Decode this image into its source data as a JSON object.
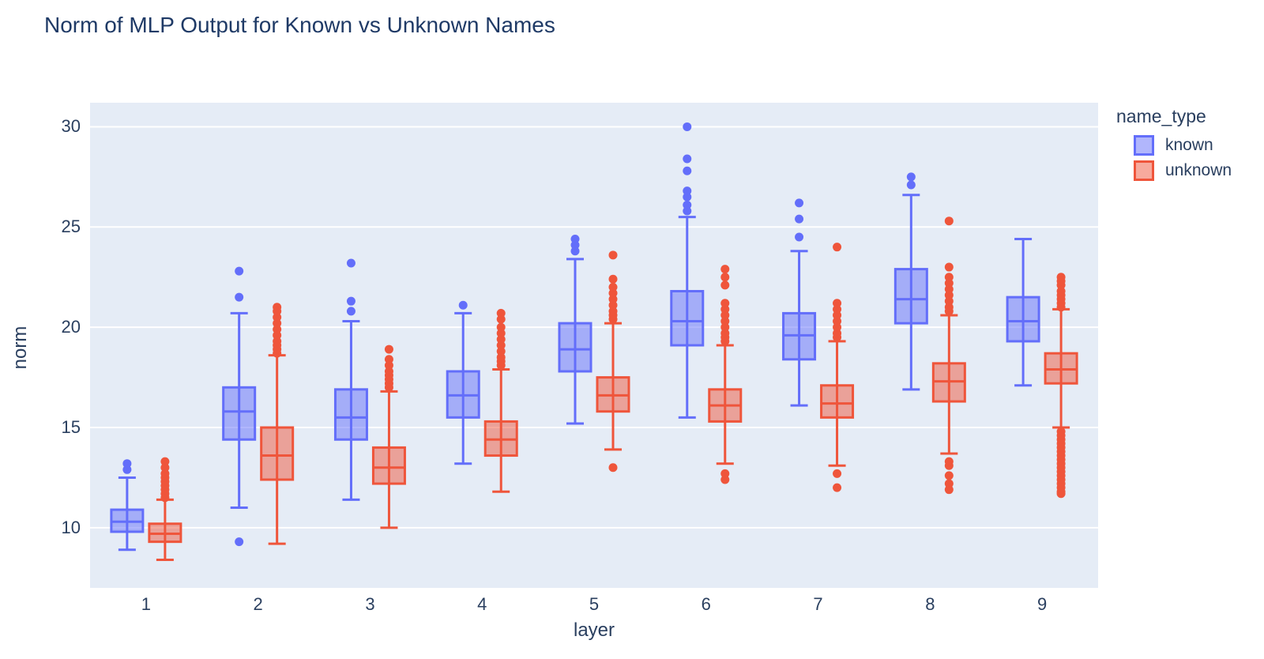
{
  "title": "Norm of MLP Output for Known vs Unknown Names",
  "legend": {
    "title": "name_type",
    "items": [
      {
        "label": "known",
        "color": "#636EFA"
      },
      {
        "label": "unknown",
        "color": "#EF553B"
      }
    ]
  },
  "colors": {
    "plot_background": "#e5ecf6",
    "gridline": "#ffffff",
    "text": "#2a3f5f",
    "known": "#636EFA",
    "unknown": "#EF553B",
    "known_fill": "rgba(99,110,250,0.5)",
    "unknown_fill": "rgba(239,85,59,0.5)"
  },
  "chart_data": {
    "type": "box",
    "title": "Norm of MLP Output for Known vs Unknown Names",
    "xlabel": "layer",
    "ylabel": "norm",
    "categories": [
      1,
      2,
      3,
      4,
      5,
      6,
      7,
      8,
      9
    ],
    "y_ticks": [
      10,
      15,
      20,
      25,
      30
    ],
    "ylim": [
      7.0,
      31.2
    ],
    "grid": true,
    "legend_position": "top-right",
    "series": [
      {
        "name": "known",
        "color": "#636EFA",
        "boxes": [
          {
            "layer": 1,
            "low": 8.9,
            "q1": 9.8,
            "median": 10.3,
            "q3": 10.9,
            "high": 12.5,
            "outliers": [
              12.9,
              13.2
            ]
          },
          {
            "layer": 2,
            "low": 11.0,
            "q1": 14.4,
            "median": 15.8,
            "q3": 17.0,
            "high": 20.7,
            "outliers": [
              9.3,
              21.5,
              22.8
            ]
          },
          {
            "layer": 3,
            "low": 11.4,
            "q1": 14.4,
            "median": 15.5,
            "q3": 16.9,
            "high": 20.3,
            "outliers": [
              20.8,
              21.3,
              23.2
            ]
          },
          {
            "layer": 4,
            "low": 13.2,
            "q1": 15.5,
            "median": 16.6,
            "q3": 17.8,
            "high": 20.7,
            "outliers": [
              21.1
            ]
          },
          {
            "layer": 5,
            "low": 15.2,
            "q1": 17.8,
            "median": 18.9,
            "q3": 20.2,
            "high": 23.4,
            "outliers": [
              23.8,
              24.1,
              24.4
            ]
          },
          {
            "layer": 6,
            "low": 15.5,
            "q1": 19.1,
            "median": 20.3,
            "q3": 21.8,
            "high": 25.5,
            "outliers": [
              25.8,
              26.1,
              26.5,
              26.8,
              27.8,
              28.4,
              30.0
            ]
          },
          {
            "layer": 7,
            "low": 16.1,
            "q1": 18.4,
            "median": 19.6,
            "q3": 20.7,
            "high": 23.8,
            "outliers": [
              24.5,
              25.4,
              26.2
            ]
          },
          {
            "layer": 8,
            "low": 16.9,
            "q1": 20.2,
            "median": 21.4,
            "q3": 22.9,
            "high": 26.6,
            "outliers": [
              27.1,
              27.5
            ]
          },
          {
            "layer": 9,
            "low": 17.1,
            "q1": 19.3,
            "median": 20.3,
            "q3": 21.5,
            "high": 24.4,
            "outliers": []
          }
        ]
      },
      {
        "name": "unknown",
        "color": "#EF553B",
        "boxes": [
          {
            "layer": 1,
            "low": 8.4,
            "q1": 9.3,
            "median": 9.7,
            "q3": 10.2,
            "high": 11.4,
            "outliers": [
              11.5,
              11.7,
              11.9,
              12.1,
              12.3,
              12.5,
              12.7,
              13.0,
              13.3
            ]
          },
          {
            "layer": 2,
            "low": 9.2,
            "q1": 12.4,
            "median": 13.6,
            "q3": 15.0,
            "high": 18.6,
            "outliers": [
              18.7,
              18.9,
              19.1,
              19.3,
              19.6,
              19.9,
              20.2,
              20.5,
              20.8,
              21.0
            ]
          },
          {
            "layer": 3,
            "low": 10.0,
            "q1": 12.2,
            "median": 13.0,
            "q3": 14.0,
            "high": 16.8,
            "outliers": [
              17.0,
              17.2,
              17.4,
              17.6,
              17.8,
              18.1,
              18.4,
              18.9
            ]
          },
          {
            "layer": 4,
            "low": 11.8,
            "q1": 13.6,
            "median": 14.4,
            "q3": 15.3,
            "high": 17.9,
            "outliers": [
              18.1,
              18.3,
              18.5,
              18.8,
              19.1,
              19.4,
              19.7,
              20.0,
              20.4,
              20.7
            ]
          },
          {
            "layer": 5,
            "low": 13.9,
            "q1": 15.8,
            "median": 16.6,
            "q3": 17.5,
            "high": 20.2,
            "outliers": [
              13.0,
              20.4,
              20.6,
              20.8,
              21.1,
              21.4,
              21.7,
              22.0,
              22.4,
              23.6
            ]
          },
          {
            "layer": 6,
            "low": 13.2,
            "q1": 15.3,
            "median": 16.1,
            "q3": 16.9,
            "high": 19.1,
            "outliers": [
              12.4,
              12.7,
              19.3,
              19.5,
              19.7,
              20.0,
              20.3,
              20.6,
              20.9,
              21.2,
              22.1,
              22.5,
              22.9
            ]
          },
          {
            "layer": 7,
            "low": 13.1,
            "q1": 15.5,
            "median": 16.2,
            "q3": 17.1,
            "high": 19.3,
            "outliers": [
              12.0,
              12.7,
              19.5,
              19.7,
              20.0,
              20.3,
              20.6,
              20.9,
              21.2,
              24.0
            ]
          },
          {
            "layer": 8,
            "low": 13.7,
            "q1": 16.3,
            "median": 17.3,
            "q3": 18.2,
            "high": 20.6,
            "outliers": [
              11.9,
              12.2,
              12.6,
              13.1,
              13.3,
              20.8,
              21.0,
              21.3,
              21.6,
              21.9,
              22.2,
              22.5,
              23.0,
              25.3
            ]
          },
          {
            "layer": 9,
            "low": 15.0,
            "q1": 17.2,
            "median": 17.9,
            "q3": 18.7,
            "high": 20.9,
            "outliers": [
              11.7,
              11.8,
              12.0,
              12.2,
              12.4,
              12.6,
              12.8,
              13.0,
              13.2,
              13.4,
              13.6,
              13.8,
              14.0,
              14.2,
              14.4,
              14.6,
              14.8,
              21.0,
              21.2,
              21.4,
              21.6,
              21.8,
              22.1,
              22.3,
              22.5
            ]
          }
        ]
      }
    ]
  }
}
